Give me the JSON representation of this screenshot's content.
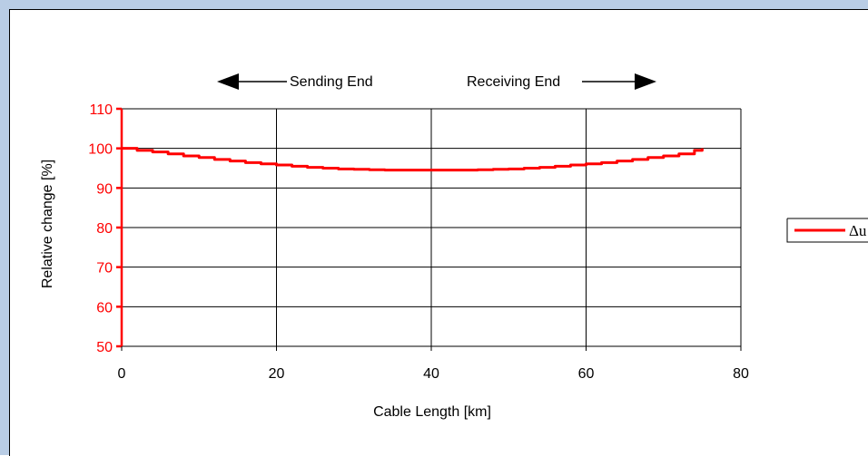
{
  "colors": {
    "frame": "#b9cde5",
    "series": "#ff0000",
    "axis": "#ff0000",
    "grid": "#000000",
    "text": "#000000"
  },
  "annotations": {
    "sending_end": "Sending End",
    "receiving_end": "Receiving End"
  },
  "chart_data": {
    "type": "line",
    "title": "",
    "xlabel": "Cable Length [km]",
    "ylabel": "Relative change [%]",
    "xlim": [
      0,
      80
    ],
    "ylim": [
      50,
      110
    ],
    "xticks": [
      0,
      20,
      40,
      60,
      80
    ],
    "yticks": [
      50,
      60,
      70,
      80,
      90,
      100,
      110
    ],
    "grid": true,
    "legend_placement": "right",
    "series": [
      {
        "name": "Δu",
        "color": "#ff0000",
        "x": [
          0,
          2,
          4,
          6,
          8,
          10,
          12,
          14,
          16,
          18,
          20,
          22,
          24,
          26,
          28,
          30,
          32,
          34,
          36,
          38,
          40,
          42,
          44,
          46,
          48,
          50,
          52,
          54,
          56,
          58,
          60,
          62,
          64,
          66,
          68,
          70,
          72,
          74,
          75
        ],
        "values": [
          100,
          99.5,
          99.1,
          98.6,
          98.1,
          97.7,
          97.2,
          96.8,
          96.4,
          96.1,
          95.8,
          95.5,
          95.2,
          95,
          94.8,
          94.7,
          94.6,
          94.5,
          94.5,
          94.5,
          94.5,
          94.5,
          94.5,
          94.6,
          94.7,
          94.8,
          95,
          95.2,
          95.5,
          95.8,
          96.1,
          96.4,
          96.8,
          97.2,
          97.7,
          98.1,
          98.6,
          99.5,
          100
        ]
      }
    ]
  }
}
